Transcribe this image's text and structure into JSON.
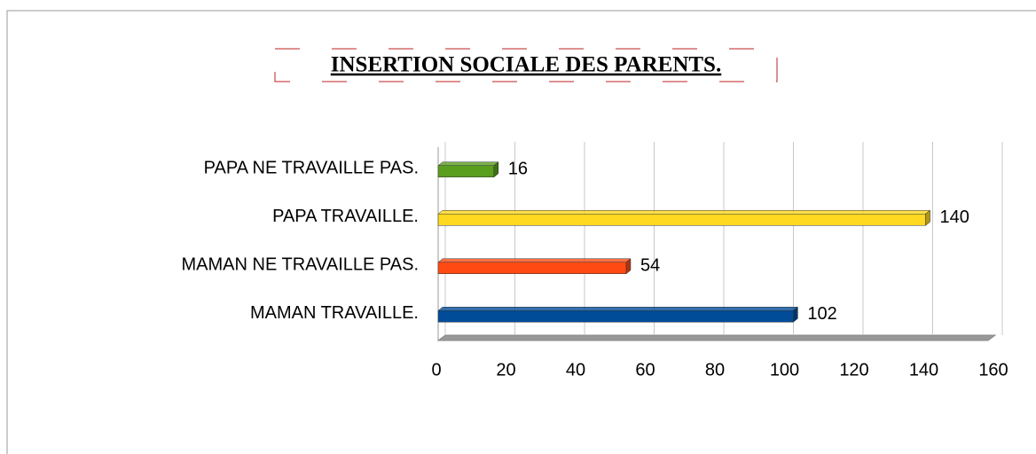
{
  "chart_data": {
    "type": "bar",
    "orientation": "horizontal",
    "title": "INSERTION SOCIALE DES PARENTS.",
    "categories": [
      "PAPA NE TRAVAILLE PAS.",
      "PAPA TRAVAILLE.",
      "MAMAN NE TRAVAILLE PAS.",
      "MAMAN TRAVAILLE."
    ],
    "values": [
      16,
      140,
      54,
      102
    ],
    "colors": [
      "#5a9e1e",
      "#ffd820",
      "#ff4a14",
      "#004c99"
    ],
    "xlim": [
      0,
      160
    ],
    "xticks": [
      0,
      20,
      40,
      60,
      80,
      100,
      120,
      140,
      160
    ],
    "grid": true
  }
}
